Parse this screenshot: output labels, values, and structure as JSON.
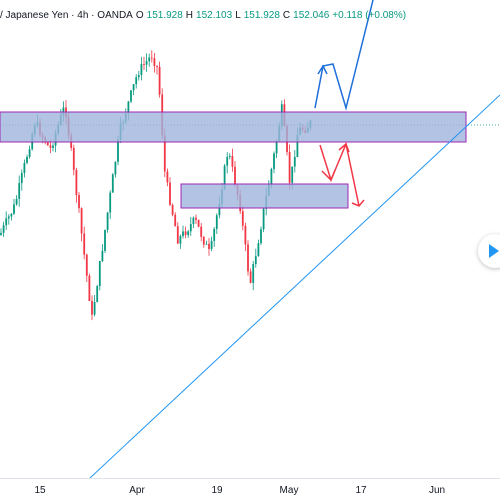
{
  "header": {
    "symbol": "/ Japanese Yen · 4h · OANDA",
    "open_label": "O",
    "open": "151.928",
    "high_label": "H",
    "high": "152.103",
    "low_label": "L",
    "low": "151.928",
    "close_label": "C",
    "close": "152.046",
    "change": "+0.118 (+0.08%)"
  },
  "x_axis": [
    "15",
    "Apr",
    "19",
    "May",
    "17",
    "Jun"
  ],
  "colors": {
    "bull": "#089981",
    "bear": "#f23645",
    "zone_fill": "#9fb4dd",
    "zone_border": "#9c27b0",
    "trendline": "#2196f3",
    "projection_up": "#1e6fd9",
    "projection_down": "#f23645"
  },
  "icons": {
    "nav": "arrow-right-icon"
  },
  "chart_data": {
    "type": "candlestick",
    "annotations": [
      "resistance-zone",
      "support-zone",
      "rising-trendline",
      "bullish-projection-path",
      "bearish-projection-path"
    ]
  }
}
